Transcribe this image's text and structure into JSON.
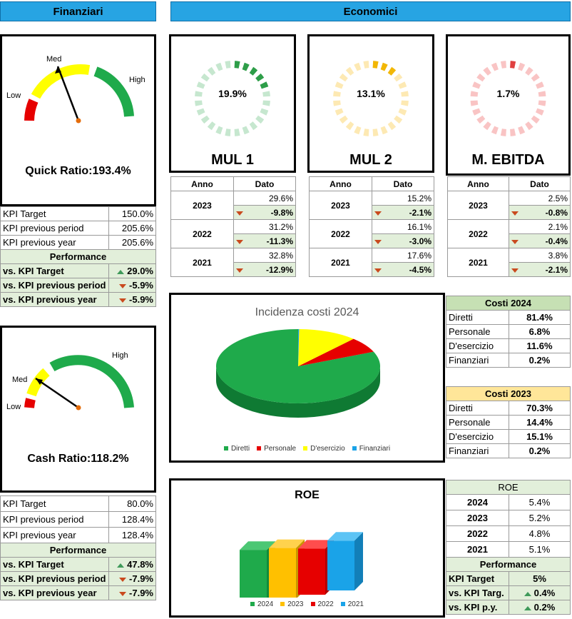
{
  "headers": {
    "finanziari": "Finanziari",
    "economici": "Economici"
  },
  "gauges": {
    "quick": {
      "label_low": "Low",
      "label_med": "Med",
      "label_high": "High",
      "title": "Quick Ratio:193.4%"
    },
    "cash": {
      "label_low": "Low",
      "label_med": "Med",
      "label_high": "High",
      "title": "Cash Ratio:118.2%"
    }
  },
  "quick_kpi": {
    "rows": [
      {
        "label": "KPI Target",
        "value": "150.0%"
      },
      {
        "label": "KPI previous period",
        "value": "205.6%"
      },
      {
        "label": "KPI previous year",
        "value": "205.6%"
      }
    ],
    "perf_title": "Performance",
    "perf": [
      {
        "label": "vs. KPI Target",
        "value": "29.0%",
        "dir": "up"
      },
      {
        "label": "vs. KPI previous period",
        "value": "-5.9%",
        "dir": "down"
      },
      {
        "label": "vs. KPI previous year",
        "value": "-5.9%",
        "dir": "down"
      }
    ]
  },
  "cash_kpi": {
    "rows": [
      {
        "label": "KPI Target",
        "value": "80.0%"
      },
      {
        "label": "KPI previous period",
        "value": "128.4%"
      },
      {
        "label": "KPI previous year",
        "value": "128.4%"
      }
    ],
    "perf_title": "Performance",
    "perf": [
      {
        "label": "vs. KPI Target",
        "value": "47.8%",
        "dir": "up"
      },
      {
        "label": "vs. KPI previous period",
        "value": "-7.9%",
        "dir": "down"
      },
      {
        "label": "vs. KPI previous year",
        "value": "-7.9%",
        "dir": "down"
      }
    ]
  },
  "rings": [
    {
      "value": "19.9%",
      "name": "MUL 1",
      "fraction": 0.199,
      "color": "#2e9e49",
      "light": "#c6e7cf"
    },
    {
      "value": "13.1%",
      "name": "MUL 2",
      "fraction": 0.131,
      "color": "#f2b705",
      "light": "#fde9b3"
    },
    {
      "value": "1.7%",
      "name": "M. EBITDA",
      "fraction": 0.017,
      "color": "#e04040",
      "light": "#f9c4c4"
    }
  ],
  "year_tables": {
    "col_anno": "Anno",
    "col_dato": "Dato",
    "mul1": [
      {
        "year": "2023",
        "val": "29.6%",
        "delta": "-9.8%"
      },
      {
        "year": "2022",
        "val": "31.2%",
        "delta": "-11.3%"
      },
      {
        "year": "2021",
        "val": "32.8%",
        "delta": "-12.9%"
      }
    ],
    "mul2": [
      {
        "year": "2023",
        "val": "15.2%",
        "delta": "-2.1%"
      },
      {
        "year": "2022",
        "val": "16.1%",
        "delta": "-3.0%"
      },
      {
        "year": "2021",
        "val": "17.6%",
        "delta": "-4.5%"
      }
    ],
    "ebitda": [
      {
        "year": "2023",
        "val": "2.5%",
        "delta": "-0.8%"
      },
      {
        "year": "2022",
        "val": "2.1%",
        "delta": "-0.4%"
      },
      {
        "year": "2021",
        "val": "3.8%",
        "delta": "-2.1%"
      }
    ]
  },
  "costs_2024": {
    "title": "Costi 2024",
    "rows": [
      {
        "label": "Diretti",
        "value": "81.4%"
      },
      {
        "label": "Personale",
        "value": "6.8%"
      },
      {
        "label": "D'esercizio",
        "value": "11.6%"
      },
      {
        "label": "Finanziari",
        "value": "0.2%"
      }
    ]
  },
  "costs_2023": {
    "title": "Costi 2023",
    "rows": [
      {
        "label": "Diretti",
        "value": "70.3%"
      },
      {
        "label": "Personale",
        "value": "14.4%"
      },
      {
        "label": "D'esercizio",
        "value": "15.1%"
      },
      {
        "label": "Finanziari",
        "value": "0.2%"
      }
    ]
  },
  "roe_table": {
    "title": "ROE",
    "rows": [
      {
        "year": "2024",
        "value": "5.4%"
      },
      {
        "year": "2023",
        "value": "5.2%"
      },
      {
        "year": "2022",
        "value": "4.8%"
      },
      {
        "year": "2021",
        "value": "5.1%"
      }
    ],
    "perf_title": "Performance",
    "perf": [
      {
        "label": "KPI Target",
        "value": "5%",
        "dir": ""
      },
      {
        "label": "vs. KPI Targ.",
        "value": "0.4%",
        "dir": "up"
      },
      {
        "label": "vs. KPI p.y.",
        "value": "0.2%",
        "dir": "up"
      }
    ]
  },
  "chart_data": [
    {
      "type": "pie",
      "title": "Incidenza costi 2024",
      "categories": [
        "Diretti",
        "Personale",
        "D'esercizio",
        "Finanziari"
      ],
      "values": [
        81.4,
        6.8,
        11.6,
        0.2
      ],
      "colors": [
        "#1faa4b",
        "#e60000",
        "#ffff00",
        "#1aa3e8"
      ],
      "legend": "bottom"
    },
    {
      "type": "bar",
      "title": "ROE",
      "categories": [
        "2024",
        "2023",
        "2022",
        "2021"
      ],
      "values": [
        5.4,
        5.2,
        4.8,
        5.1
      ],
      "colors": [
        "#1faa4b",
        "#ffc000",
        "#e60000",
        "#1aa3e8"
      ],
      "legend": "bottom"
    }
  ]
}
